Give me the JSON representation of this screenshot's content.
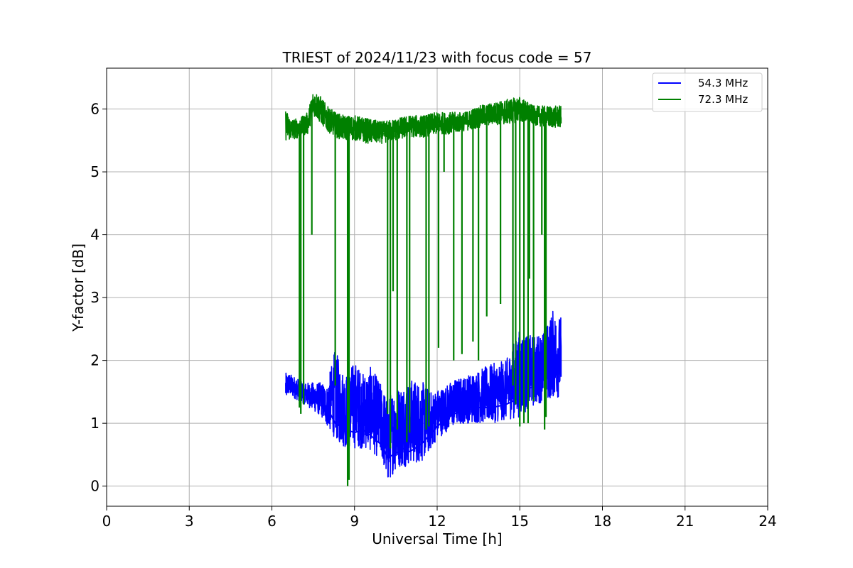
{
  "chart_data": {
    "type": "line",
    "title": "TRIEST of 2024/11/23 with focus code = 57",
    "xlabel": "Universal Time [h]",
    "ylabel": "Y-factor [dB]",
    "xlim": [
      0,
      24
    ],
    "ylim": [
      -0.32,
      6.65
    ],
    "xticks": [
      0,
      3,
      6,
      9,
      12,
      15,
      18,
      21,
      24
    ],
    "yticks": [
      0,
      1,
      2,
      3,
      4,
      5,
      6
    ],
    "grid": true,
    "legend_position": "top-right",
    "series": [
      {
        "name": "54.3 MHz",
        "color": "#0000ff",
        "x": [
          6.5,
          6.6,
          6.8,
          7.0,
          7.2,
          7.5,
          7.8,
          8.0,
          8.3,
          8.5,
          8.7,
          9.0,
          9.3,
          9.6,
          10.0,
          10.2,
          10.4,
          10.6,
          10.8,
          11.0,
          11.2,
          11.5,
          11.8,
          12.0,
          12.3,
          12.6,
          13.0,
          13.5,
          14.0,
          14.5,
          15.0,
          15.3,
          15.6,
          15.9,
          16.2,
          16.5
        ],
        "y": [
          1.6,
          1.7,
          1.6,
          1.5,
          1.45,
          1.4,
          1.35,
          1.25,
          1.0,
          0.95,
          0.9,
          0.85,
          0.9,
          0.8,
          0.65,
          0.45,
          0.5,
          0.55,
          0.6,
          0.55,
          0.6,
          0.7,
          0.85,
          0.95,
          1.05,
          1.15,
          1.2,
          1.25,
          1.25,
          1.3,
          1.4,
          1.55,
          1.6,
          1.7,
          1.75,
          1.8
        ],
        "upper": [
          1.8,
          1.8,
          1.75,
          1.7,
          1.65,
          1.65,
          1.65,
          1.6,
          2.2,
          1.9,
          1.8,
          2.0,
          1.8,
          1.9,
          1.6,
          1.4,
          1.55,
          1.6,
          1.65,
          1.7,
          1.7,
          1.65,
          1.5,
          1.55,
          1.6,
          1.7,
          1.75,
          1.85,
          1.95,
          2.0,
          2.5,
          2.4,
          2.4,
          2.5,
          2.8,
          2.7
        ],
        "lower": [
          1.35,
          1.45,
          1.4,
          1.35,
          1.3,
          1.2,
          1.1,
          0.95,
          0.75,
          0.65,
          0.6,
          0.6,
          0.6,
          0.55,
          0.4,
          0.02,
          0.2,
          0.3,
          0.3,
          0.35,
          0.35,
          0.4,
          0.6,
          0.75,
          0.85,
          0.95,
          1.0,
          1.0,
          1.0,
          1.05,
          1.1,
          1.2,
          1.3,
          1.35,
          1.4,
          1.4
        ]
      },
      {
        "name": "72.3 MHz",
        "color": "#008000",
        "x": [
          6.5,
          6.7,
          7.0,
          7.3,
          7.5,
          7.7,
          8.0,
          8.3,
          8.6,
          9.0,
          9.5,
          10.0,
          10.5,
          11.0,
          11.5,
          12.0,
          12.5,
          13.0,
          13.5,
          14.0,
          14.5,
          15.0,
          15.5,
          16.0,
          16.5
        ],
        "y": [
          5.7,
          5.65,
          5.7,
          5.75,
          6.1,
          6.05,
          5.9,
          5.8,
          5.7,
          5.7,
          5.65,
          5.6,
          5.65,
          5.7,
          5.72,
          5.75,
          5.75,
          5.8,
          5.85,
          5.9,
          5.95,
          6.0,
          5.9,
          5.85,
          5.85
        ],
        "upper": [
          6.0,
          5.85,
          5.85,
          5.95,
          6.3,
          6.25,
          6.05,
          5.95,
          5.9,
          5.9,
          5.85,
          5.8,
          5.85,
          5.9,
          5.9,
          5.95,
          5.95,
          5.95,
          6.05,
          6.1,
          6.15,
          6.2,
          6.05,
          6.05,
          6.05
        ],
        "lower": [
          5.5,
          5.5,
          5.55,
          5.6,
          5.9,
          5.8,
          5.65,
          5.55,
          5.5,
          5.5,
          5.45,
          5.45,
          5.5,
          5.55,
          5.55,
          5.6,
          5.6,
          5.65,
          5.7,
          5.75,
          5.75,
          5.8,
          5.75,
          5.7,
          5.7
        ],
        "dropouts": [
          [
            7.0,
            1.25
          ],
          [
            7.05,
            1.15
          ],
          [
            7.15,
            1.3
          ],
          [
            7.45,
            4.0
          ],
          [
            8.3,
            1.6
          ],
          [
            8.75,
            0.0
          ],
          [
            8.8,
            0.1
          ],
          [
            10.2,
            1.15
          ],
          [
            10.3,
            0.6
          ],
          [
            10.4,
            3.1
          ],
          [
            10.55,
            0.9
          ],
          [
            10.9,
            0.7
          ],
          [
            11.0,
            0.85
          ],
          [
            11.6,
            0.9
          ],
          [
            11.7,
            0.95
          ],
          [
            12.05,
            2.2
          ],
          [
            12.25,
            5.0
          ],
          [
            12.6,
            2.0
          ],
          [
            12.9,
            2.1
          ],
          [
            13.3,
            2.3
          ],
          [
            13.5,
            2.0
          ],
          [
            13.8,
            2.7
          ],
          [
            14.3,
            2.9
          ],
          [
            14.75,
            1.6
          ],
          [
            14.85,
            1.3
          ],
          [
            15.0,
            0.95
          ],
          [
            15.15,
            1.0
          ],
          [
            15.3,
            1.0
          ],
          [
            15.35,
            3.3
          ],
          [
            15.5,
            1.35
          ],
          [
            15.8,
            4.0
          ],
          [
            15.9,
            0.9
          ],
          [
            15.95,
            1.1
          ]
        ]
      }
    ]
  }
}
